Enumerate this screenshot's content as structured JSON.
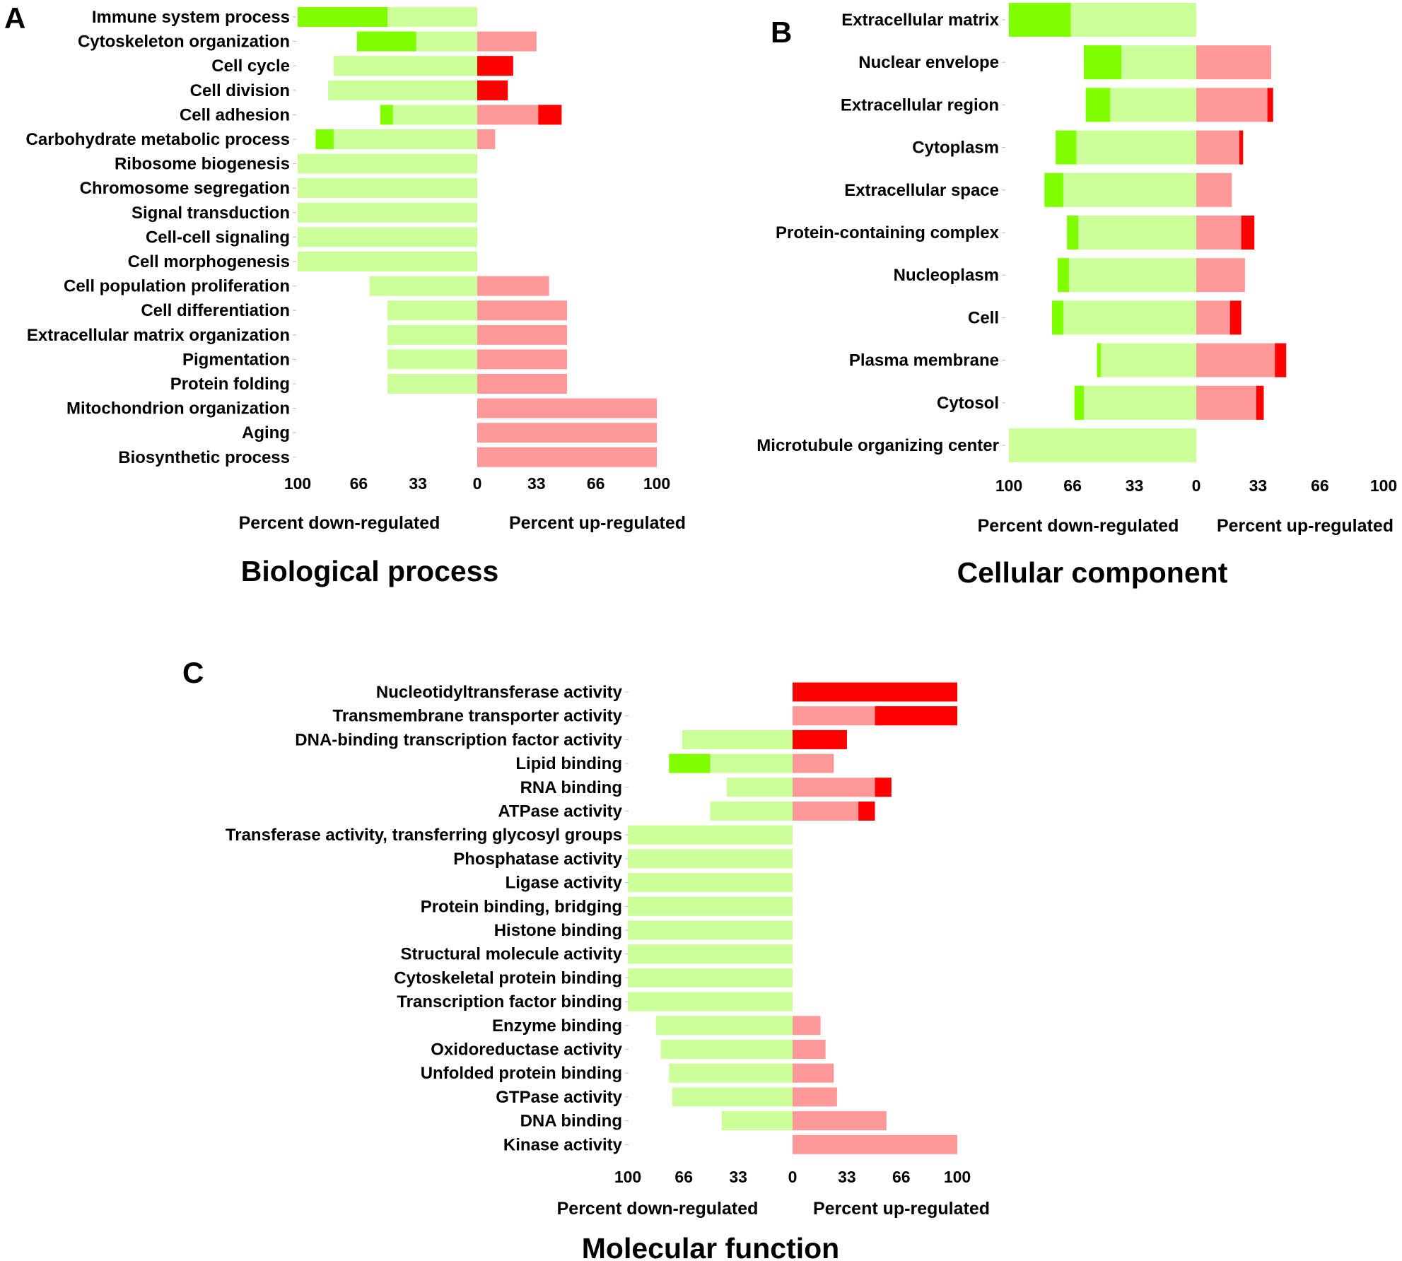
{
  "figure": {
    "colors": {
      "down_light": "#ccff99",
      "down_strong": "#80ff00",
      "up_light": "#ff9999",
      "up_strong": "#ff0000",
      "tick": "#bbbbbb"
    }
  },
  "chart_data": [
    {
      "type": "bar",
      "orientation": "horizontal-diverging",
      "panel_letter": "A",
      "title": "Biological process",
      "xlabel_left": "Percent down-regulated",
      "xlabel_right": "Percent up-regulated",
      "xlim": [
        -100,
        100
      ],
      "tick_labels": [
        "100",
        "66",
        "33",
        "0",
        "33",
        "66",
        "100"
      ],
      "series_names": [
        "down total",
        "down strong",
        "up total",
        "up strong"
      ],
      "categories": [
        "Immune system process",
        "Cytoskeleton organization",
        "Cell cycle",
        "Cell division",
        "Cell adhesion",
        "Carbohydrate metabolic process",
        "Ribosome biogenesis",
        "Chromosome segregation",
        "Signal transduction",
        "Cell-cell signaling",
        "Cell morphogenesis",
        "Cell population proliferation",
        "Cell differentiation",
        "Extracellular matrix organization",
        "Pigmentation",
        "Protein folding",
        "Mitochondrion organization",
        "Aging",
        "Biosynthetic process"
      ],
      "down_total": [
        100,
        67,
        80,
        83,
        54,
        90,
        100,
        100,
        100,
        100,
        100,
        60,
        50,
        50,
        50,
        50,
        0,
        0,
        0
      ],
      "down_strong": [
        50,
        33,
        0,
        0,
        7,
        10,
        0,
        0,
        0,
        0,
        0,
        0,
        0,
        0,
        0,
        0,
        0,
        0,
        0
      ],
      "up_total": [
        0,
        33,
        20,
        17,
        47,
        10,
        0,
        0,
        0,
        0,
        0,
        40,
        50,
        50,
        50,
        50,
        100,
        100,
        100
      ],
      "up_strong": [
        0,
        0,
        20,
        17,
        13,
        0,
        0,
        0,
        0,
        0,
        0,
        0,
        0,
        0,
        0,
        0,
        0,
        0,
        0
      ]
    },
    {
      "type": "bar",
      "orientation": "horizontal-diverging",
      "panel_letter": "B",
      "title": "Cellular component",
      "xlabel_left": "Percent down-regulated",
      "xlabel_right": "Percent up-regulated",
      "xlim": [
        -100,
        100
      ],
      "tick_labels": [
        "100",
        "66",
        "33",
        "0",
        "33",
        "66",
        "100"
      ],
      "series_names": [
        "down total",
        "down strong",
        "up total",
        "up strong"
      ],
      "categories": [
        "Extracellular matrix",
        "Nuclear envelope",
        "Extracellular region",
        "Cytoplasm",
        "Extracellular space",
        "Protein-containing complex",
        "Nucleoplasm",
        "Cell",
        "Plasma membrane",
        "Cytosol",
        "Microtubule organizing center"
      ],
      "down_total": [
        100,
        60,
        59,
        75,
        81,
        69,
        74,
        77,
        53,
        65,
        100
      ],
      "down_strong": [
        33,
        20,
        13,
        11,
        10,
        6,
        6,
        6,
        2,
        5,
        0
      ],
      "up_total": [
        0,
        40,
        41,
        25,
        19,
        31,
        26,
        24,
        48,
        36,
        0
      ],
      "up_strong": [
        0,
        0,
        3,
        2,
        0,
        7,
        0,
        6,
        6,
        4,
        0
      ]
    },
    {
      "type": "bar",
      "orientation": "horizontal-diverging",
      "panel_letter": "C",
      "title": "Molecular function",
      "xlabel_left": "Percent down-regulated",
      "xlabel_right": "Percent up-regulated",
      "xlim": [
        -100,
        100
      ],
      "tick_labels": [
        "100",
        "66",
        "33",
        "0",
        "33",
        "66",
        "100"
      ],
      "series_names": [
        "down total",
        "down strong",
        "up total",
        "up strong"
      ],
      "categories": [
        "Nucleotidyltransferase activity",
        "Transmembrane transporter activity",
        "DNA-binding transcription factor activity",
        "Lipid binding",
        "RNA binding",
        "ATPase activity",
        "Transferase activity, transferring glycosyl groups",
        "Phosphatase activity",
        "Ligase activity",
        "Protein binding, bridging",
        "Histone binding",
        "Structural molecule activity",
        "Cytoskeletal protein binding",
        "Transcription factor binding",
        "Enzyme binding",
        "Oxidoreductase activity",
        "Unfolded protein binding",
        "GTPase activity",
        "DNA binding",
        "Kinase activity"
      ],
      "down_total": [
        0,
        0,
        67,
        75,
        40,
        50,
        100,
        100,
        100,
        100,
        100,
        100,
        100,
        100,
        83,
        80,
        75,
        73,
        43,
        0
      ],
      "down_strong": [
        0,
        0,
        0,
        25,
        0,
        0,
        0,
        0,
        0,
        0,
        0,
        0,
        0,
        0,
        0,
        0,
        0,
        0,
        0,
        0
      ],
      "up_total": [
        100,
        100,
        33,
        25,
        60,
        50,
        0,
        0,
        0,
        0,
        0,
        0,
        0,
        0,
        17,
        20,
        25,
        27,
        57,
        100
      ],
      "up_strong": [
        100,
        50,
        33,
        0,
        10,
        10,
        0,
        0,
        0,
        0,
        0,
        0,
        0,
        0,
        0,
        0,
        0,
        0,
        0,
        0
      ]
    }
  ]
}
